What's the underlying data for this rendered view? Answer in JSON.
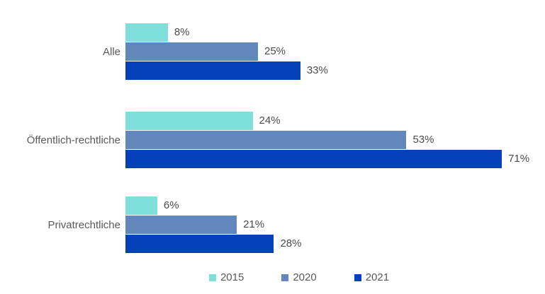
{
  "chart_data": {
    "type": "bar",
    "orientation": "horizontal",
    "title": "",
    "categories": [
      "Alle",
      "Öffentlich-rechtliche",
      "Privatrechtliche"
    ],
    "series": [
      {
        "name": "2015",
        "color": "#7EE0DB",
        "values": [
          8,
          24,
          6
        ],
        "labels": [
          "8%",
          "24%",
          "6%"
        ]
      },
      {
        "name": "2020",
        "color": "#6287BD",
        "values": [
          25,
          53,
          21
        ],
        "labels": [
          "25%",
          "53%",
          "21%"
        ]
      },
      {
        "name": "2021",
        "color": "#0441B8",
        "values": [
          33,
          71,
          28
        ],
        "labels": [
          "33%",
          "71%",
          "28%"
        ]
      }
    ],
    "xlim": [
      0,
      79
    ],
    "grid": false,
    "data_labels": true,
    "legend_position": "bottom",
    "text_color": "#595959"
  }
}
